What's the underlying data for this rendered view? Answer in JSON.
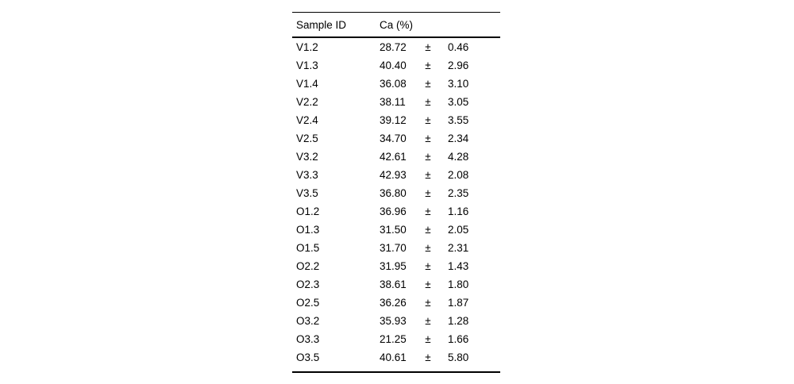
{
  "table": {
    "headers": {
      "sample_id": "Sample ID",
      "ca": "Ca (%)"
    },
    "plus_minus": "±",
    "rows": [
      {
        "id": "V1.2",
        "value": "28.72",
        "err": "0.46"
      },
      {
        "id": "V1.3",
        "value": "40.40",
        "err": "2.96"
      },
      {
        "id": "V1.4",
        "value": "36.08",
        "err": "3.10"
      },
      {
        "id": "V2.2",
        "value": "38.11",
        "err": "3.05"
      },
      {
        "id": "V2.4",
        "value": "39.12",
        "err": "3.55"
      },
      {
        "id": "V2.5",
        "value": "34.70",
        "err": "2.34"
      },
      {
        "id": "V3.2",
        "value": "42.61",
        "err": "4.28"
      },
      {
        "id": "V3.3",
        "value": "42.93",
        "err": "2.08"
      },
      {
        "id": "V3.5",
        "value": "36.80",
        "err": "2.35"
      },
      {
        "id": "O1.2",
        "value": "36.96",
        "err": "1.16"
      },
      {
        "id": "O1.3",
        "value": "31.50",
        "err": "2.05"
      },
      {
        "id": "O1.5",
        "value": "31.70",
        "err": "2.31"
      },
      {
        "id": "O2.2",
        "value": "31.95",
        "err": "1.43"
      },
      {
        "id": "O2.3",
        "value": "38.61",
        "err": "1.80"
      },
      {
        "id": "O2.5",
        "value": "36.26",
        "err": "1.87"
      },
      {
        "id": "O3.2",
        "value": "35.93",
        "err": "1.28"
      },
      {
        "id": "O3.3",
        "value": "21.25",
        "err": "1.66"
      },
      {
        "id": "O3.5",
        "value": "40.61",
        "err": "5.80"
      }
    ]
  },
  "colors": {
    "text": "#000000",
    "rule": "#000000",
    "background": "#ffffff"
  }
}
